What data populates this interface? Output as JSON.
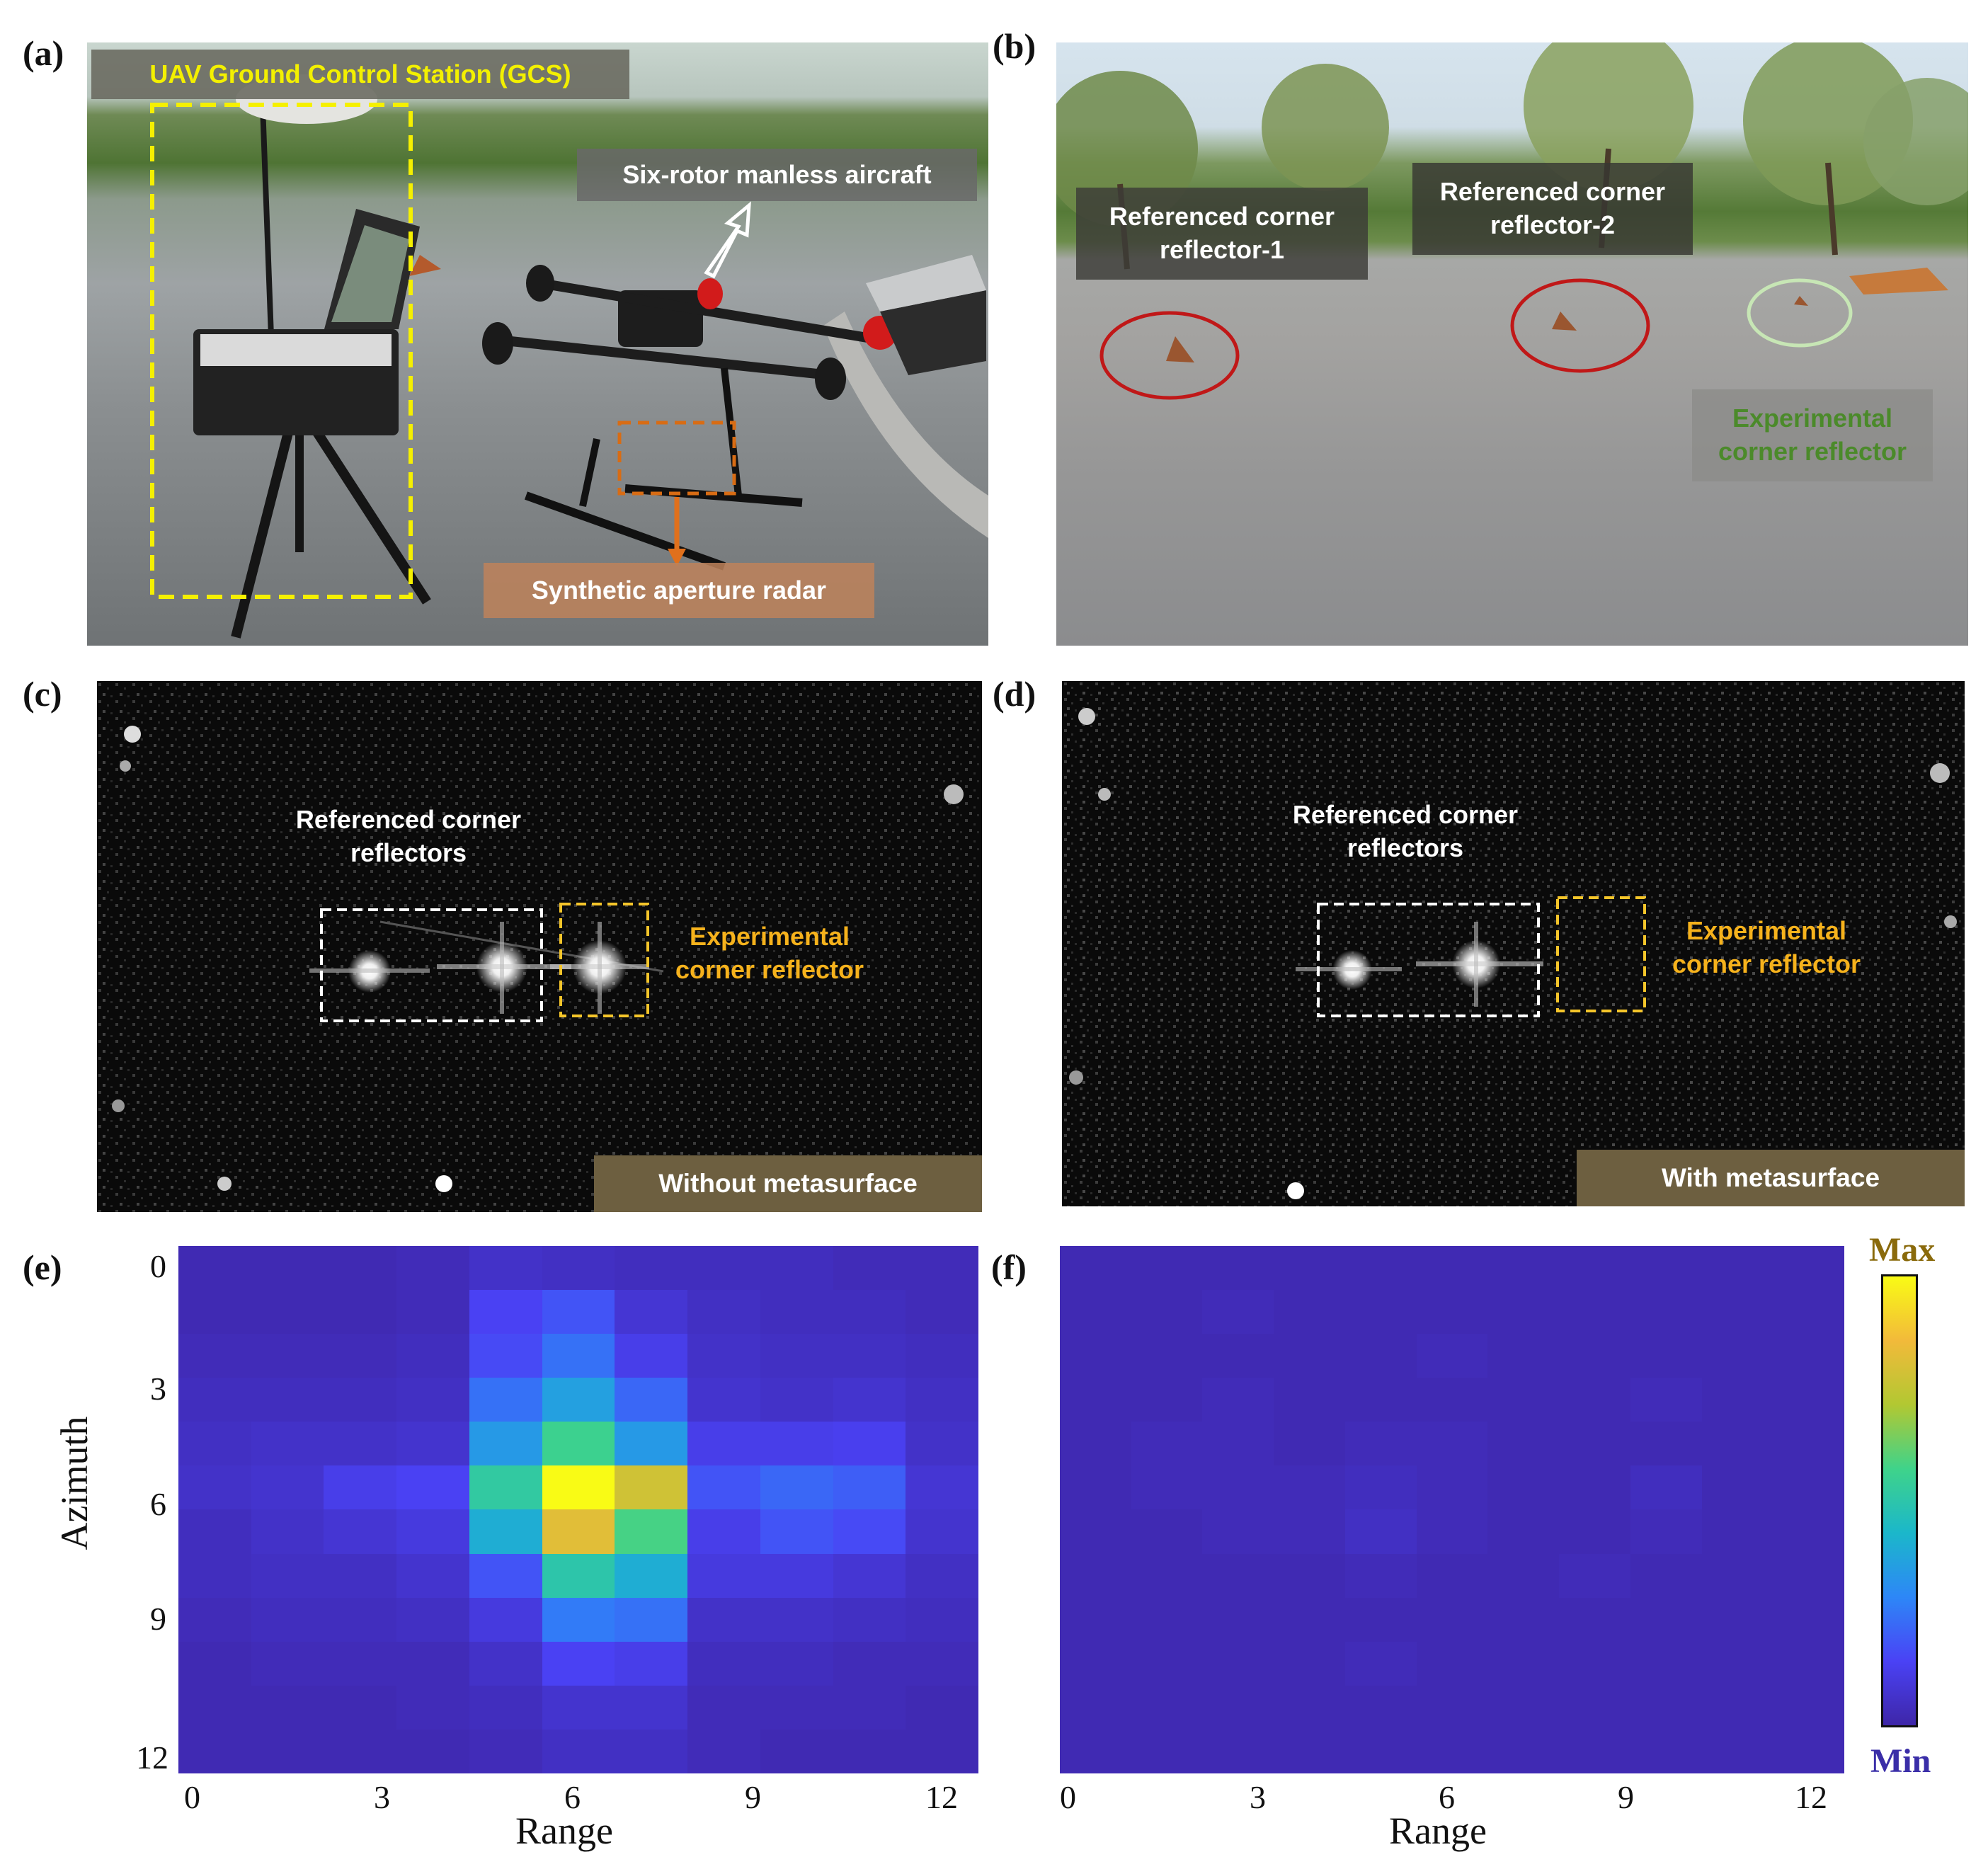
{
  "panels": {
    "a": {
      "label": "(a)",
      "gcs": "UAV Ground Control Station (GCS)",
      "aircraft": "Six-rotor manless aircraft",
      "radar": "Synthetic aperture radar"
    },
    "b": {
      "label": "(b)",
      "ref1": "Referenced corner reflector-1",
      "ref2": "Referenced corner reflector-2",
      "exp": "Experimental corner reflector"
    },
    "c": {
      "label": "(c)",
      "ref": "Referenced corner reflectors",
      "exp": "Experimental corner reflector",
      "tag": "Without metasurface"
    },
    "d": {
      "label": "(d)",
      "ref": "Referenced corner reflectors",
      "exp": "Experimental corner reflector",
      "tag": "With metasurface"
    },
    "e": {
      "label": "(e)"
    },
    "f": {
      "label": "(f)"
    }
  },
  "colorbar": {
    "max": "Max",
    "min": "Min"
  },
  "chart_data": [
    {
      "type": "heatmap",
      "panel": "(e)",
      "xlabel": "Range",
      "ylabel": "Azimuth",
      "x_ticks": [
        "0",
        "3",
        "6",
        "9",
        "12"
      ],
      "y_ticks": [
        "0",
        "3",
        "6",
        "9",
        "12"
      ],
      "colorscale": [
        "#3e26a8",
        "#4a42f5",
        "#2d87f7",
        "#1bb7ca",
        "#3fd38a",
        "#b2c832",
        "#f2ba3a",
        "#f9fb15"
      ],
      "values": [
        [
          0.02,
          0.02,
          0.02,
          0.03,
          0.06,
          0.05,
          0.04,
          0.04,
          0.04,
          0.03,
          0.03
        ],
        [
          0.02,
          0.02,
          0.02,
          0.03,
          0.14,
          0.18,
          0.08,
          0.05,
          0.04,
          0.04,
          0.03
        ],
        [
          0.03,
          0.03,
          0.03,
          0.04,
          0.16,
          0.24,
          0.12,
          0.06,
          0.05,
          0.05,
          0.04
        ],
        [
          0.04,
          0.04,
          0.04,
          0.05,
          0.24,
          0.36,
          0.22,
          0.07,
          0.06,
          0.07,
          0.05
        ],
        [
          0.05,
          0.06,
          0.06,
          0.07,
          0.34,
          0.56,
          0.34,
          0.12,
          0.12,
          0.13,
          0.06
        ],
        [
          0.06,
          0.07,
          0.12,
          0.14,
          0.52,
          1.0,
          0.78,
          0.18,
          0.22,
          0.2,
          0.08
        ],
        [
          0.04,
          0.06,
          0.08,
          0.1,
          0.4,
          0.82,
          0.58,
          0.12,
          0.18,
          0.16,
          0.07
        ],
        [
          0.04,
          0.05,
          0.05,
          0.07,
          0.18,
          0.5,
          0.4,
          0.1,
          0.1,
          0.08,
          0.05
        ],
        [
          0.03,
          0.04,
          0.04,
          0.05,
          0.1,
          0.26,
          0.24,
          0.06,
          0.06,
          0.05,
          0.04
        ],
        [
          0.02,
          0.03,
          0.03,
          0.03,
          0.06,
          0.14,
          0.12,
          0.04,
          0.04,
          0.03,
          0.03
        ],
        [
          0.02,
          0.02,
          0.02,
          0.03,
          0.04,
          0.07,
          0.07,
          0.03,
          0.03,
          0.03,
          0.02
        ],
        [
          0.02,
          0.02,
          0.02,
          0.02,
          0.03,
          0.05,
          0.05,
          0.03,
          0.02,
          0.02,
          0.02
        ]
      ]
    },
    {
      "type": "heatmap",
      "panel": "(f)",
      "xlabel": "Range",
      "x_ticks": [
        "0",
        "3",
        "6",
        "9",
        "12"
      ],
      "colorscale": [
        "#3e26a8",
        "#4a42f5",
        "#2d87f7",
        "#1bb7ca",
        "#3fd38a",
        "#b2c832",
        "#f2ba3a",
        "#f9fb15"
      ],
      "values": [
        [
          0.02,
          0.02,
          0.02,
          0.02,
          0.02,
          0.02,
          0.02,
          0.02,
          0.02,
          0.02,
          0.02
        ],
        [
          0.02,
          0.02,
          0.03,
          0.02,
          0.02,
          0.02,
          0.02,
          0.02,
          0.02,
          0.02,
          0.02
        ],
        [
          0.02,
          0.02,
          0.02,
          0.02,
          0.02,
          0.03,
          0.02,
          0.02,
          0.02,
          0.02,
          0.02
        ],
        [
          0.02,
          0.02,
          0.03,
          0.02,
          0.02,
          0.02,
          0.02,
          0.02,
          0.03,
          0.02,
          0.02
        ],
        [
          0.02,
          0.03,
          0.03,
          0.02,
          0.03,
          0.03,
          0.02,
          0.02,
          0.02,
          0.02,
          0.02
        ],
        [
          0.02,
          0.03,
          0.03,
          0.03,
          0.04,
          0.03,
          0.02,
          0.02,
          0.04,
          0.02,
          0.02
        ],
        [
          0.02,
          0.02,
          0.03,
          0.03,
          0.05,
          0.03,
          0.02,
          0.02,
          0.03,
          0.02,
          0.02
        ],
        [
          0.02,
          0.02,
          0.02,
          0.02,
          0.03,
          0.02,
          0.02,
          0.03,
          0.02,
          0.02,
          0.02
        ],
        [
          0.02,
          0.02,
          0.02,
          0.02,
          0.02,
          0.02,
          0.02,
          0.02,
          0.02,
          0.02,
          0.02
        ],
        [
          0.02,
          0.02,
          0.02,
          0.02,
          0.03,
          0.02,
          0.02,
          0.02,
          0.02,
          0.02,
          0.02
        ],
        [
          0.02,
          0.02,
          0.02,
          0.02,
          0.02,
          0.02,
          0.02,
          0.02,
          0.02,
          0.02,
          0.02
        ],
        [
          0.02,
          0.02,
          0.02,
          0.02,
          0.02,
          0.02,
          0.02,
          0.02,
          0.02,
          0.02,
          0.02
        ]
      ]
    }
  ]
}
